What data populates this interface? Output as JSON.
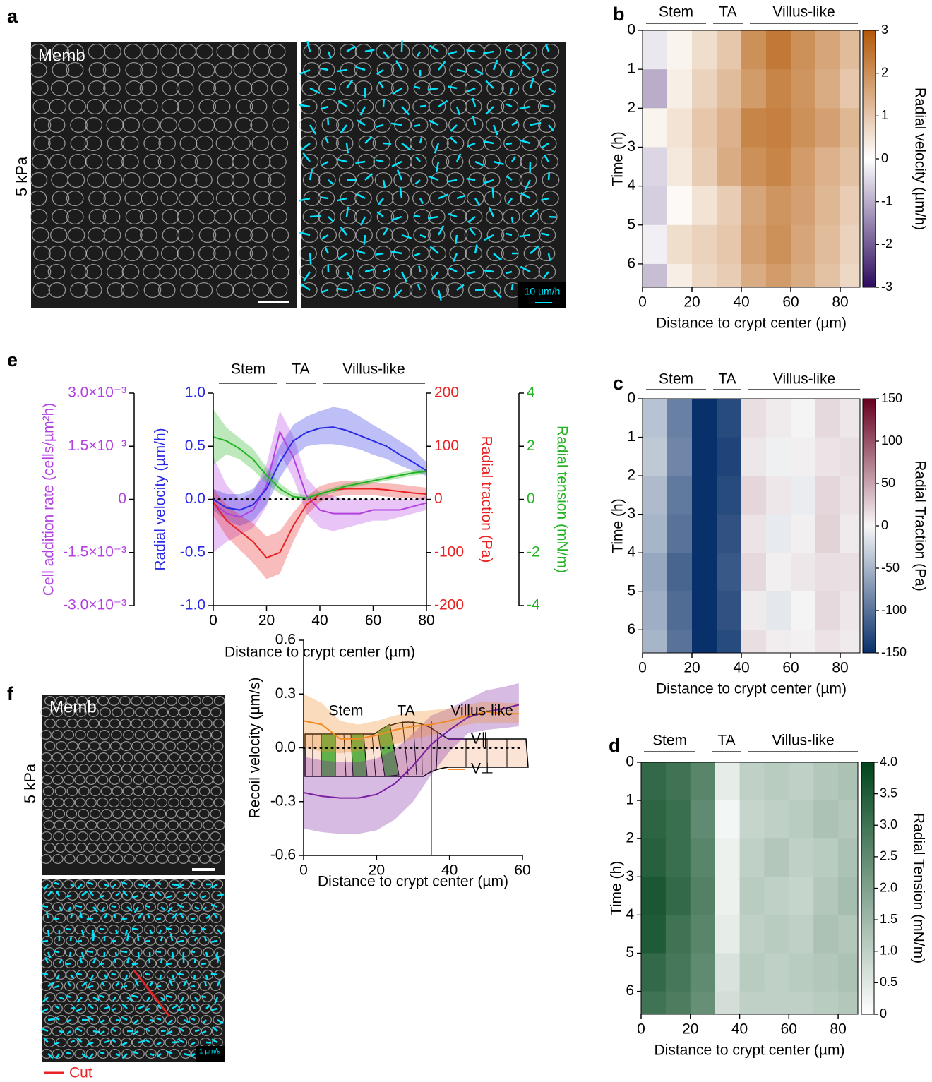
{
  "panels": [
    "a",
    "b",
    "c",
    "d",
    "e",
    "f"
  ],
  "images": {
    "a_channel": "Memb",
    "a_stiffness": "5 kPa",
    "a_scale": "10 µm/h",
    "f_channel": "Memb",
    "f_stiffness": "5 kPa",
    "f_scale": "1 µm/s",
    "f_cut": "Cut"
  },
  "chart_data": [
    {
      "type": "line",
      "regions": [
        "Stem",
        "TA",
        "Villus-like"
      ],
      "xlabel": "Distance to crypt center (µm)",
      "x": [
        0,
        5,
        10,
        15,
        20,
        25,
        30,
        35,
        40,
        45,
        50,
        55,
        60,
        65,
        70,
        75,
        80
      ],
      "xlim": [
        0,
        80
      ],
      "xticks": [
        0,
        20,
        40,
        60,
        80
      ],
      "ylabel": "Radial velocity (µm/h)",
      "ylim": [
        -1,
        1
      ],
      "yticks": [
        {
          "value": 1,
          "label": "1.0"
        },
        0.5,
        {
          "value": 0,
          "label": "0.0"
        },
        -0.5,
        {
          "value": -1,
          "label": "-1.0"
        }
      ],
      "y2label": "Radial traction (Pa)",
      "y2lim": [
        -200,
        200
      ],
      "y2ticks": [
        200,
        100,
        0,
        -100,
        -200
      ],
      "y3label": "Radial tension (mN/m)",
      "y3lim": [
        -4,
        4
      ],
      "y3ticks": [
        4,
        2,
        0,
        -2,
        -4
      ],
      "y4label": "Cell addition rate (cells/µm²h)",
      "y4lim": [
        -0.003,
        0.003
      ],
      "y4ticks": [
        {
          "value": 0.003,
          "label": "3.0×10⁻³"
        },
        {
          "value": 0.0015,
          "label": "1.5×10⁻³"
        },
        0,
        {
          "value": -0.0015,
          "label": "-1.5×10⁻³"
        },
        {
          "value": -0.003,
          "label": "-3.0×10⁻³"
        }
      ],
      "axis_colors": true,
      "zero_line": true,
      "series": [
        {
          "axis": "y4",
          "color": "#b23fe0",
          "values": [
            -0.0001,
            -0.0004,
            -0.0005,
            -0.0003,
            0.0004,
            0.0019,
            0.0012,
            0.0001,
            -0.0003,
            -0.0004,
            -0.0004,
            -0.0004,
            -0.0003,
            -0.0003,
            -0.0003,
            -0.0002,
            -0.0001
          ],
          "lower": [
            -0.0015,
            -0.0012,
            -0.001,
            -0.0008,
            -0.0002,
            0.0013,
            0.0006,
            -0.0004,
            -0.0008,
            -0.0009,
            -0.0008,
            -0.0007,
            -0.0006,
            -0.0006,
            -0.0005,
            -0.0004,
            -0.0003
          ],
          "upper": [
            0.0012,
            0.0004,
            0,
            0.0002,
            0.001,
            0.0025,
            0.0018,
            0.0006,
            0.0002,
            0.0001,
            0,
            0,
            0,
            0,
            0,
            0,
            0.0001
          ]
        },
        {
          "axis": "y",
          "color": "#2a2ae6",
          "values": [
            0,
            -0.08,
            -0.1,
            -0.05,
            0.1,
            0.35,
            0.55,
            0.63,
            0.67,
            0.68,
            0.65,
            0.6,
            0.55,
            0.5,
            0.42,
            0.35,
            0.27
          ],
          "lower": [
            -0.1,
            -0.2,
            -0.25,
            -0.2,
            -0.05,
            0.2,
            0.4,
            0.5,
            0.52,
            0.52,
            0.5,
            0.47,
            0.42,
            0.38,
            0.32,
            0.27,
            0.22
          ],
          "upper": [
            0.1,
            0.05,
            0.05,
            0.1,
            0.25,
            0.5,
            0.7,
            0.78,
            0.83,
            0.87,
            0.85,
            0.78,
            0.7,
            0.63,
            0.55,
            0.47,
            0.35
          ]
        },
        {
          "axis": "y2",
          "color": "#e82222",
          "values": [
            -5,
            -40,
            -60,
            -80,
            -110,
            -100,
            -50,
            -10,
            10,
            18,
            20,
            20,
            20,
            18,
            15,
            12,
            10
          ],
          "lower": [
            -30,
            -70,
            -95,
            -120,
            -150,
            -140,
            -80,
            -30,
            -5,
            5,
            8,
            8,
            8,
            5,
            3,
            2,
            0
          ],
          "upper": [
            20,
            -10,
            -30,
            -45,
            -70,
            -60,
            -25,
            5,
            25,
            32,
            35,
            33,
            32,
            30,
            28,
            25,
            22
          ]
        },
        {
          "axis": "y3",
          "color": "#22b322",
          "values": [
            2.35,
            2.2,
            1.9,
            1.5,
            0.9,
            0.4,
            0.1,
            0.05,
            0.2,
            0.35,
            0.5,
            0.6,
            0.7,
            0.8,
            0.9,
            1.0,
            1.05
          ],
          "lower": [
            1.3,
            1.7,
            1.5,
            1.1,
            0.6,
            0.2,
            0.0,
            -0.05,
            0.1,
            0.25,
            0.4,
            0.5,
            0.6,
            0.7,
            0.8,
            0.9,
            0.95
          ],
          "upper": [
            3.4,
            2.7,
            2.3,
            1.9,
            1.2,
            0.6,
            0.25,
            0.15,
            0.3,
            0.45,
            0.6,
            0.7,
            0.8,
            0.9,
            1.0,
            1.1,
            1.15
          ]
        }
      ]
    },
    {
      "type": "line",
      "regions": [
        "Stem",
        "TA",
        "Villus-like"
      ],
      "xlabel": "Distance to crypt center (µm)",
      "ylabel": "Recoil velocity (µm/s)",
      "x": [
        0,
        5,
        10,
        15,
        20,
        25,
        30,
        35,
        40,
        45,
        50,
        55,
        59
      ],
      "xlim": [
        0,
        60
      ],
      "xticks": [
        0,
        20,
        40,
        60
      ],
      "ylim": [
        -0.6,
        0.6
      ],
      "yticks": [
        0.6,
        0.3,
        {
          "value": 0,
          "label": "0.0"
        },
        -0.3,
        -0.6
      ],
      "vline": 35,
      "zero_line": true,
      "legend": "lower right",
      "series": [
        {
          "name": "V∥",
          "color": "#7b1fa2",
          "values": [
            -0.25,
            -0.27,
            -0.28,
            -0.28,
            -0.26,
            -0.2,
            -0.1,
            0.02,
            0.1,
            0.17,
            0.2,
            0.22,
            0.24
          ],
          "lower": [
            -0.45,
            -0.47,
            -0.48,
            -0.48,
            -0.46,
            -0.4,
            -0.3,
            -0.15,
            -0.02,
            0.08,
            0.1,
            0.11,
            0.12
          ],
          "upper": [
            -0.05,
            -0.07,
            -0.08,
            -0.08,
            -0.06,
            -0.01,
            0.08,
            0.18,
            0.22,
            0.27,
            0.32,
            0.34,
            0.36
          ]
        },
        {
          "name": "V⊥",
          "color": "#f08a24",
          "values": [
            0.15,
            0.13,
            0.05,
            0.05,
            0.07,
            0.1,
            0.12,
            0.13,
            0.15,
            0.18,
            0.2,
            0.19,
            0.19
          ],
          "lower": [
            0.0,
            -0.02,
            -0.03,
            -0.02,
            0,
            0.02,
            0.05,
            0.07,
            0.1,
            0.13,
            0.14,
            0.14,
            0.14
          ],
          "upper": [
            0.3,
            0.25,
            0.15,
            0.13,
            0.15,
            0.18,
            0.2,
            0.21,
            0.22,
            0.24,
            0.26,
            0.25,
            0.25
          ]
        }
      ]
    },
    {
      "type": "heatmap",
      "regions": [
        "Stem",
        "TA",
        "Villus-like"
      ],
      "xlabel": "Distance to crypt center (µm)",
      "ylabel": "Time (h)",
      "ztitle": "Radial velocity (µm/h)",
      "x_edges": [
        0,
        10,
        20,
        30,
        40,
        50,
        60,
        70,
        80,
        88
      ],
      "y_edges": [
        0,
        1,
        2,
        3,
        4,
        5,
        6,
        6.6
      ],
      "xlim": [
        0,
        88
      ],
      "ylim": [
        6.6,
        0
      ],
      "xticks": [
        0,
        20,
        40,
        60,
        80
      ],
      "yticks": [
        0,
        1,
        2,
        3,
        4,
        5,
        6
      ],
      "z": [
        [
          -0.3,
          0.2,
          0.6,
          1.0,
          2.0,
          2.4,
          2.0,
          1.6,
          1.2
        ],
        [
          -1.0,
          0.3,
          0.8,
          1.2,
          1.8,
          2.2,
          1.9,
          1.5,
          1.0
        ],
        [
          0.2,
          0.5,
          1.0,
          1.4,
          2.2,
          2.3,
          2.0,
          1.7,
          1.3
        ],
        [
          -0.5,
          0.4,
          0.9,
          1.5,
          2.0,
          2.2,
          1.8,
          1.4,
          1.1
        ],
        [
          -0.6,
          0.1,
          0.5,
          0.9,
          1.6,
          1.9,
          1.7,
          1.3,
          0.9
        ],
        [
          -0.2,
          0.6,
          0.8,
          1.0,
          1.7,
          2.0,
          1.6,
          1.2,
          0.8
        ],
        [
          -0.8,
          0.3,
          0.7,
          0.9,
          1.5,
          1.8,
          1.5,
          1.1,
          0.7
        ]
      ],
      "zlim": [
        -3,
        3
      ],
      "zticks": [
        3,
        2,
        1,
        0,
        -1,
        -2,
        -3
      ],
      "colormap": [
        "#2d0a5e",
        "#ffffff",
        "#b35806"
      ]
    },
    {
      "type": "heatmap",
      "regions": [
        "Stem",
        "TA",
        "Villus-like"
      ],
      "xlabel": "Distance to crypt center (µm)",
      "ylabel": "Time (h)",
      "ztitle": "Radial Traction  (Pa)",
      "x_edges": [
        0,
        10,
        20,
        30,
        40,
        50,
        60,
        70,
        80,
        88
      ],
      "y_edges": [
        0,
        1,
        2,
        3,
        4,
        5,
        6,
        6.6
      ],
      "xlim": [
        0,
        88
      ],
      "ylim": [
        6.6,
        0
      ],
      "xticks": [
        0,
        20,
        40,
        60,
        80
      ],
      "yticks": [
        0,
        1,
        2,
        3,
        4,
        5,
        6
      ],
      "z": [
        [
          -40,
          -90,
          -150,
          -130,
          15,
          8,
          2,
          18,
          10
        ],
        [
          -35,
          -85,
          -150,
          -135,
          10,
          -5,
          5,
          12,
          15
        ],
        [
          -45,
          -95,
          -150,
          -130,
          20,
          10,
          -8,
          20,
          12
        ],
        [
          -50,
          -100,
          -150,
          -125,
          12,
          -10,
          5,
          22,
          8
        ],
        [
          -60,
          -110,
          -150,
          -120,
          18,
          5,
          10,
          15,
          14
        ],
        [
          -55,
          -105,
          -150,
          -125,
          8,
          -12,
          2,
          18,
          10
        ],
        [
          -50,
          -100,
          -150,
          -130,
          15,
          6,
          4,
          12,
          8
        ]
      ],
      "zlim": [
        -150,
        150
      ],
      "zticks": [
        150,
        100,
        50,
        0,
        -50,
        -100,
        -150
      ],
      "colormap": [
        "#08306b",
        "#f7f7f7",
        "#67001f"
      ]
    },
    {
      "type": "heatmap",
      "regions": [
        "Stem",
        "TA",
        "Villus-like"
      ],
      "xlabel": "Distance to crypt center (µm)",
      "ylabel": "Time (h)",
      "ztitle": "Radial Tension (mN/m)",
      "x_edges": [
        0,
        10,
        20,
        30,
        40,
        50,
        60,
        70,
        80,
        88
      ],
      "y_edges": [
        0,
        1,
        2,
        3,
        4,
        5,
        6,
        6.6
      ],
      "xlim": [
        0,
        88
      ],
      "ylim": [
        6.6,
        0
      ],
      "xticks": [
        0,
        20,
        40,
        60,
        80
      ],
      "yticks": [
        0,
        1,
        2,
        3,
        4,
        5,
        6
      ],
      "z": [
        [
          3.2,
          3.0,
          2.6,
          0.4,
          1.0,
          1.1,
          1.0,
          1.2,
          1.3
        ],
        [
          3.3,
          3.1,
          2.5,
          0.2,
          0.9,
          1.0,
          1.1,
          1.3,
          1.2
        ],
        [
          3.4,
          3.1,
          2.6,
          0.3,
          1.0,
          1.2,
          1.0,
          1.1,
          1.3
        ],
        [
          3.6,
          3.2,
          2.7,
          0.3,
          1.1,
          1.0,
          0.9,
          1.2,
          1.4
        ],
        [
          3.5,
          3.0,
          2.6,
          0.4,
          1.0,
          1.1,
          1.0,
          1.3,
          1.2
        ],
        [
          3.2,
          2.9,
          2.5,
          0.6,
          1.1,
          1.0,
          1.1,
          1.2,
          1.3
        ],
        [
          3.0,
          2.8,
          2.4,
          0.7,
          1.0,
          1.0,
          1.0,
          1.1,
          1.2
        ]
      ],
      "zlim": [
        0,
        4
      ],
      "zticks": [
        {
          "value": 4,
          "label": "4.0"
        },
        3.5,
        {
          "value": 3,
          "label": "3.0"
        },
        2.5,
        {
          "value": 2,
          "label": "2.0"
        },
        1.5,
        {
          "value": 1,
          "label": "1.0"
        },
        0.5,
        0
      ],
      "colormap": [
        "#ffffff",
        "#00441b"
      ]
    }
  ]
}
